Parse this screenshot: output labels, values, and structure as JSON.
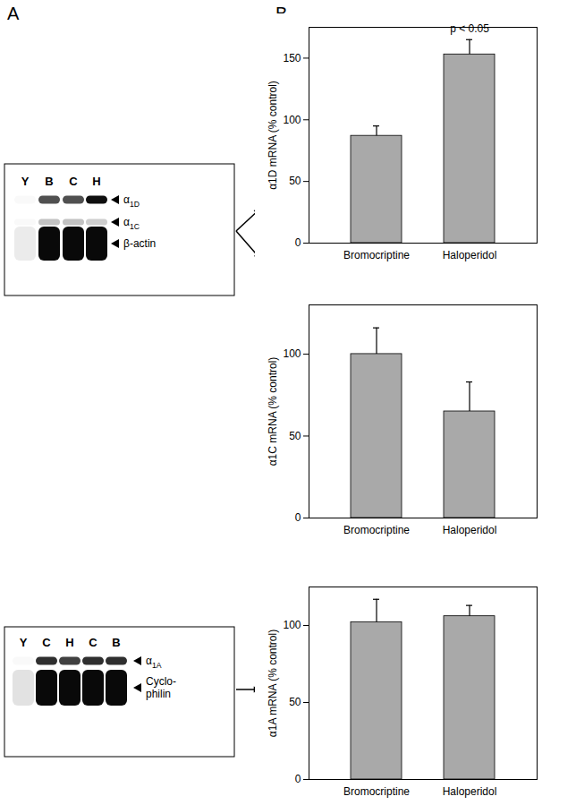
{
  "panel_labels": [
    "A",
    "B"
  ],
  "blots": [
    {
      "lanes": [
        "Y",
        "B",
        "C",
        "H"
      ],
      "bands": [
        [
          "α1D"
        ],
        [
          "α1C"
        ],
        [
          "β-actin"
        ]
      ]
    },
    {
      "lanes": [
        "Y",
        "C",
        "H",
        "C",
        "B"
      ],
      "bands": [
        [
          "α1A"
        ],
        [
          "Cyclo-",
          "philin"
        ]
      ]
    }
  ],
  "chart_data": [
    {
      "type": "bar",
      "y_label": "α1D mRNA (% control)",
      "categories": [
        "Bromocriptine",
        "Haloperidol"
      ],
      "values": [
        87,
        153
      ],
      "errors": [
        8,
        12
      ],
      "color": "#a9a9a9",
      "ylim": [
        0,
        175
      ],
      "yticks": [
        0,
        50,
        100,
        150
      ],
      "annotations": [
        {
          "text": "p < 0.05",
          "category": "Haloperidol"
        }
      ]
    },
    {
      "type": "bar",
      "y_label": "α1C mRNA (% control)",
      "categories": [
        "Bromocriptine",
        "Haloperidol"
      ],
      "values": [
        100,
        65
      ],
      "errors": [
        16,
        18
      ],
      "color": "#a9a9a9",
      "ylim": [
        0,
        130
      ],
      "yticks": [
        0,
        50,
        100
      ]
    },
    {
      "type": "bar",
      "y_label": "α1A mRNA (% control)",
      "categories": [
        "Bromocriptine",
        "Haloperidol"
      ],
      "values": [
        102,
        106
      ],
      "errors": [
        15,
        7
      ],
      "color": "#a9a9a9",
      "ylim": [
        0,
        125
      ],
      "yticks": [
        0,
        50,
        100
      ]
    }
  ]
}
